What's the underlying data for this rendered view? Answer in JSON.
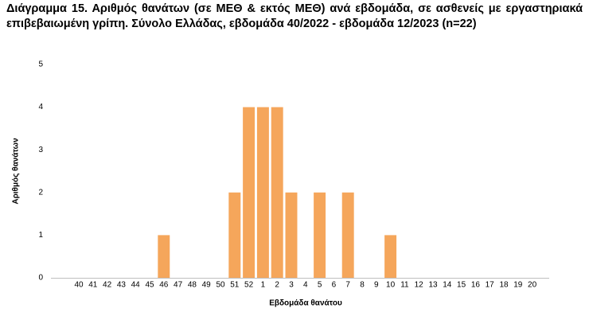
{
  "chart_data": {
    "type": "bar",
    "title": "Διάγραμμα 15. Αριθμός θανάτων (σε ΜΕΘ & εκτός ΜΕΘ) ανά εβδομάδα, σε ασθενείς με εργαστηριακά επιβεβαιωμένη γρίπη. Σύνολο Ελλάδας, εβδομάδα 40/2022 - εβδομάδα 12/2023 (n=22)",
    "x_label": "Εβδομάδα θανάτου",
    "y_label": "Αριθμός θανάτων",
    "categories": [
      "40",
      "41",
      "42",
      "43",
      "44",
      "45",
      "46",
      "47",
      "48",
      "49",
      "50",
      "51",
      "52",
      "1",
      "2",
      "3",
      "4",
      "5",
      "6",
      "7",
      "8",
      "9",
      "10",
      "11",
      "12",
      "13",
      "14",
      "15",
      "16",
      "17",
      "18",
      "19",
      "20"
    ],
    "values": [
      0,
      0,
      0,
      0,
      0,
      0,
      1,
      0,
      0,
      0,
      0,
      2,
      4,
      4,
      4,
      2,
      0,
      2,
      0,
      2,
      0,
      0,
      1,
      0,
      0,
      0,
      0,
      0,
      0,
      0,
      0,
      0,
      0
    ],
    "color": "#f5a65b",
    "ylim": [
      0,
      5
    ],
    "yticks": [
      0,
      1,
      2,
      3,
      4,
      5
    ],
    "grid": false
  }
}
